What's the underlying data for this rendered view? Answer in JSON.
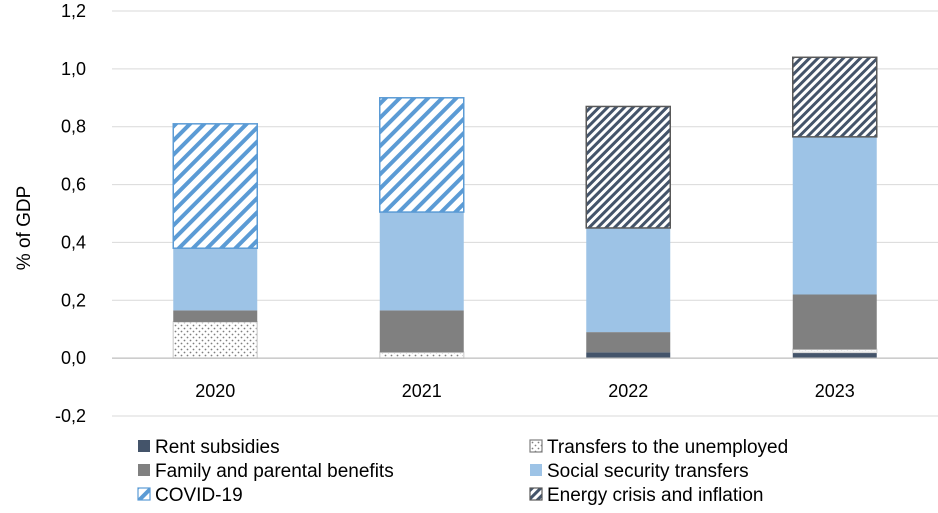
{
  "chart_data": {
    "type": "bar",
    "stacked": true,
    "categories": [
      "2020",
      "2021",
      "2022",
      "2023"
    ],
    "ylabel": "% of GDP",
    "ylim": [
      -0.2,
      1.2
    ],
    "yticks": [
      -0.2,
      0.0,
      0.2,
      0.4,
      0.6,
      0.8,
      1.0,
      1.2
    ],
    "ytick_labels": [
      "-0,2",
      "0,0",
      "0,2",
      "0,4",
      "0,6",
      "0,8",
      "1,0",
      "1,2"
    ],
    "grid": true,
    "legend_position": "bottom",
    "series": [
      {
        "name": "Rent subsidies",
        "values": [
          0.0,
          0.0,
          0.02,
          0.02
        ],
        "color": "#44546a",
        "pattern": "solid"
      },
      {
        "name": "Transfers to the unemployed",
        "values": [
          0.125,
          0.02,
          0.0,
          0.01
        ],
        "color": "#ffffff",
        "pattern": "dots"
      },
      {
        "name": "Family and parental benefits",
        "values": [
          0.04,
          0.145,
          0.07,
          0.19
        ],
        "color": "#808080",
        "pattern": "solid"
      },
      {
        "name": "Social security transfers",
        "values": [
          0.215,
          0.34,
          0.36,
          0.545
        ],
        "color": "#9dc3e6",
        "pattern": "solid"
      },
      {
        "name": "COVID-19",
        "values": [
          0.43,
          0.395,
          0.0,
          0.0
        ],
        "color": "#5b9bd5",
        "pattern": "hatch-light"
      },
      {
        "name": "Energy crisis and inflation",
        "values": [
          0.0,
          0.0,
          0.42,
          0.275
        ],
        "color": "#44546a",
        "pattern": "hatch-dark"
      }
    ]
  }
}
